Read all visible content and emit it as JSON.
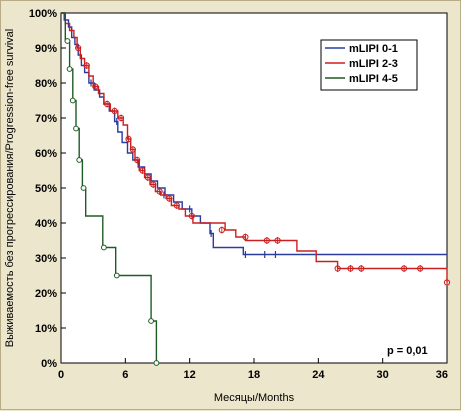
{
  "chart_data": {
    "type": "line",
    "subtype": "kaplan-meier",
    "xlabel": "Месяцы/Months",
    "ylabel": "Выживаемость без прогрессирования/Progression-free survival",
    "xlim": [
      0,
      36
    ],
    "ylim": [
      0,
      100
    ],
    "x_ticks": [
      0,
      6,
      12,
      18,
      24,
      30,
      36
    ],
    "y_ticks": [
      0,
      10,
      20,
      30,
      40,
      50,
      60,
      70,
      80,
      90,
      100
    ],
    "y_tick_format": "percent",
    "grid": false,
    "legend_placement": "top-right",
    "annotation": "p = 0,01",
    "series": [
      {
        "name": "mLIPI 0-1",
        "color": "#2a3c9e",
        "steps": [
          [
            0,
            100
          ],
          [
            0.3,
            98
          ],
          [
            0.7,
            96
          ],
          [
            1.0,
            93
          ],
          [
            1.3,
            91
          ],
          [
            1.6,
            88
          ],
          [
            1.9,
            85
          ],
          [
            2.2,
            83
          ],
          [
            2.6,
            80
          ],
          [
            3.1,
            78
          ],
          [
            3.6,
            76
          ],
          [
            4.0,
            74
          ],
          [
            4.5,
            72
          ],
          [
            5.0,
            69
          ],
          [
            5.3,
            66
          ],
          [
            5.7,
            63
          ],
          [
            6.2,
            60
          ],
          [
            6.7,
            58
          ],
          [
            7.2,
            56
          ],
          [
            7.8,
            54
          ],
          [
            8.4,
            52
          ],
          [
            9.0,
            50
          ],
          [
            9.7,
            48
          ],
          [
            10.5,
            46
          ],
          [
            11.3,
            44
          ],
          [
            12.2,
            42
          ],
          [
            13.0,
            40
          ],
          [
            13.9,
            37
          ],
          [
            14.2,
            33
          ],
          [
            17.0,
            31
          ],
          [
            36,
            31
          ]
        ],
        "censored": [
          [
            2.8,
            80
          ],
          [
            5.2,
            69
          ],
          [
            7.3,
            56
          ],
          [
            9.6,
            48
          ],
          [
            12.0,
            44
          ],
          [
            14.0,
            37
          ],
          [
            17.2,
            31
          ],
          [
            19.0,
            31
          ],
          [
            20.0,
            31
          ]
        ]
      },
      {
        "name": "mLIPI 2-3",
        "color": "#cc2020",
        "steps": [
          [
            0,
            100
          ],
          [
            0.4,
            97
          ],
          [
            0.8,
            95
          ],
          [
            1.2,
            93
          ],
          [
            1.5,
            90
          ],
          [
            1.8,
            87
          ],
          [
            2.2,
            85
          ],
          [
            2.6,
            82
          ],
          [
            3.0,
            79
          ],
          [
            3.5,
            77
          ],
          [
            4.0,
            74
          ],
          [
            4.6,
            72
          ],
          [
            5.3,
            70
          ],
          [
            5.8,
            68
          ],
          [
            6.2,
            64
          ],
          [
            6.5,
            61
          ],
          [
            6.9,
            58
          ],
          [
            7.3,
            55
          ],
          [
            7.8,
            53
          ],
          [
            8.3,
            51
          ],
          [
            8.8,
            49
          ],
          [
            9.3,
            48
          ],
          [
            9.8,
            47
          ],
          [
            10.3,
            45
          ],
          [
            11.0,
            44
          ],
          [
            11.6,
            42
          ],
          [
            12.3,
            40
          ],
          [
            15.3,
            38
          ],
          [
            16.3,
            36
          ],
          [
            17.2,
            35
          ],
          [
            22.0,
            32
          ],
          [
            23.8,
            29
          ],
          [
            25.8,
            27
          ],
          [
            36,
            27
          ],
          [
            36,
            23
          ]
        ],
        "censored": [
          [
            1.6,
            90
          ],
          [
            2.4,
            85
          ],
          [
            3.2,
            79
          ],
          [
            4.3,
            74
          ],
          [
            5.0,
            72
          ],
          [
            5.6,
            70
          ],
          [
            6.3,
            64
          ],
          [
            6.7,
            61
          ],
          [
            7.1,
            58
          ],
          [
            7.6,
            55
          ],
          [
            8.1,
            53
          ],
          [
            8.6,
            51
          ],
          [
            9.2,
            49
          ],
          [
            10.1,
            47
          ],
          [
            10.8,
            45
          ],
          [
            12.2,
            42
          ],
          [
            15.0,
            38
          ],
          [
            17.2,
            36
          ],
          [
            19.2,
            35
          ],
          [
            20.2,
            35
          ],
          [
            25.8,
            27
          ],
          [
            27.0,
            27
          ],
          [
            28.0,
            27
          ],
          [
            32.0,
            27
          ],
          [
            33.5,
            27
          ],
          [
            36,
            23
          ]
        ]
      },
      {
        "name": "mLIPI 4-5",
        "color": "#1f5c24",
        "steps": [
          [
            0,
            100
          ],
          [
            0.4,
            92
          ],
          [
            0.8,
            84
          ],
          [
            1.1,
            75
          ],
          [
            1.4,
            67
          ],
          [
            1.7,
            58
          ],
          [
            2.0,
            50
          ],
          [
            2.3,
            42
          ],
          [
            3.9,
            33
          ],
          [
            5.1,
            25
          ],
          [
            8.4,
            12
          ],
          [
            8.9,
            0
          ]
        ],
        "censored": [
          [
            0.6,
            92
          ],
          [
            0.8,
            84
          ],
          [
            1.1,
            75
          ],
          [
            1.4,
            67
          ],
          [
            1.7,
            58
          ],
          [
            2.1,
            50
          ],
          [
            4.0,
            33
          ],
          [
            5.2,
            25
          ],
          [
            8.4,
            12
          ],
          [
            8.9,
            0
          ]
        ]
      }
    ]
  }
}
